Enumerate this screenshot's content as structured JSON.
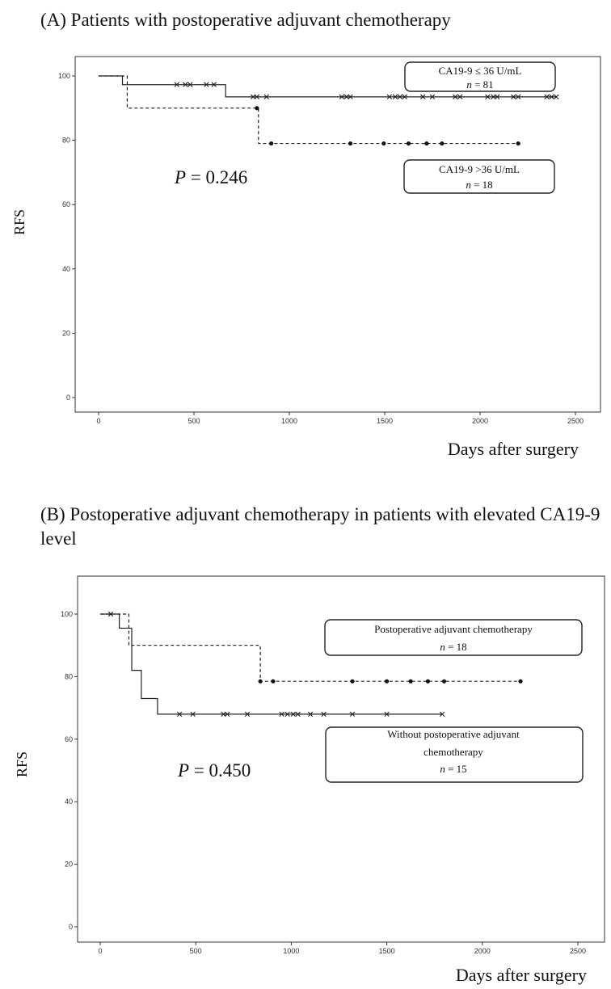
{
  "chart_data": [
    {
      "type": "line",
      "panel_title": "(A) Patients with postoperative adjuvant chemotherapy",
      "ylabel": "RFS",
      "xlabel": "Days after surgery",
      "xlim": [
        0,
        2500
      ],
      "ylim": [
        0,
        100
      ],
      "x_ticks": [
        0,
        500,
        1000,
        1500,
        2000,
        2500
      ],
      "y_ticks": [
        0,
        20,
        40,
        60,
        80,
        100
      ],
      "p_value": "P = 0.246",
      "series": [
        {
          "legend_lines": [
            "CA19-9 ≤ 36 U/mL",
            "n = 81"
          ],
          "line_style": "solid",
          "censor_marker": "cross",
          "steps": [
            [
              0,
              100
            ],
            [
              125,
              97.3
            ],
            [
              666,
              93.5
            ],
            [
              2400,
              93.5
            ]
          ],
          "censored_x": [
            410,
            455,
            480,
            565,
            605,
            810,
            830,
            880,
            1275,
            1300,
            1320,
            1525,
            1555,
            1580,
            1605,
            1700,
            1750,
            1870,
            1895,
            2040,
            2070,
            2090,
            2175,
            2200,
            2350,
            2375,
            2400
          ]
        },
        {
          "legend_lines": [
            "CA19-9 >36 U/mL",
            "n = 18"
          ],
          "line_style": "dashed",
          "censor_marker": "dot",
          "steps": [
            [
              0,
              100
            ],
            [
              150,
              90
            ],
            [
              838,
              79
            ],
            [
              2200,
              79
            ]
          ],
          "censored_x": [
            830,
            905,
            1320,
            1495,
            1625,
            1720,
            1800,
            2200
          ]
        }
      ]
    },
    {
      "type": "line",
      "panel_title": "(B) Postoperative adjuvant chemotherapy in patients with elevated CA19-9 level",
      "ylabel": "RFS",
      "xlabel": "Days after surgery",
      "xlim": [
        0,
        2500
      ],
      "ylim": [
        0,
        100
      ],
      "x_ticks": [
        0,
        500,
        1000,
        1500,
        2000,
        2500
      ],
      "y_ticks": [
        0,
        20,
        40,
        60,
        80,
        100
      ],
      "p_value": "P = 0.450",
      "series": [
        {
          "legend_lines": [
            "Postoperative adjuvant chemotherapy",
            "n = 18"
          ],
          "line_style": "dashed",
          "censor_marker": "dot",
          "steps": [
            [
              0,
              100
            ],
            [
              150,
              90
            ],
            [
              838,
              78.5
            ],
            [
              2200,
              78.5
            ]
          ],
          "censored_x": [
            838,
            905,
            1320,
            1500,
            1625,
            1715,
            1800,
            2200
          ]
        },
        {
          "legend_lines": [
            "Without postoperative adjuvant",
            "chemotherapy",
            "n = 15"
          ],
          "line_style": "solid",
          "censor_marker": "cross",
          "steps": [
            [
              0,
              100
            ],
            [
              100,
              95.5
            ],
            [
              165,
              82
            ],
            [
              215,
              73
            ],
            [
              300,
              68
            ],
            [
              1790,
              68
            ]
          ],
          "censored_x": [
            55,
            415,
            485,
            645,
            665,
            770,
            950,
            980,
            1010,
            1035,
            1100,
            1170,
            1320,
            1500,
            1790
          ]
        }
      ]
    }
  ]
}
